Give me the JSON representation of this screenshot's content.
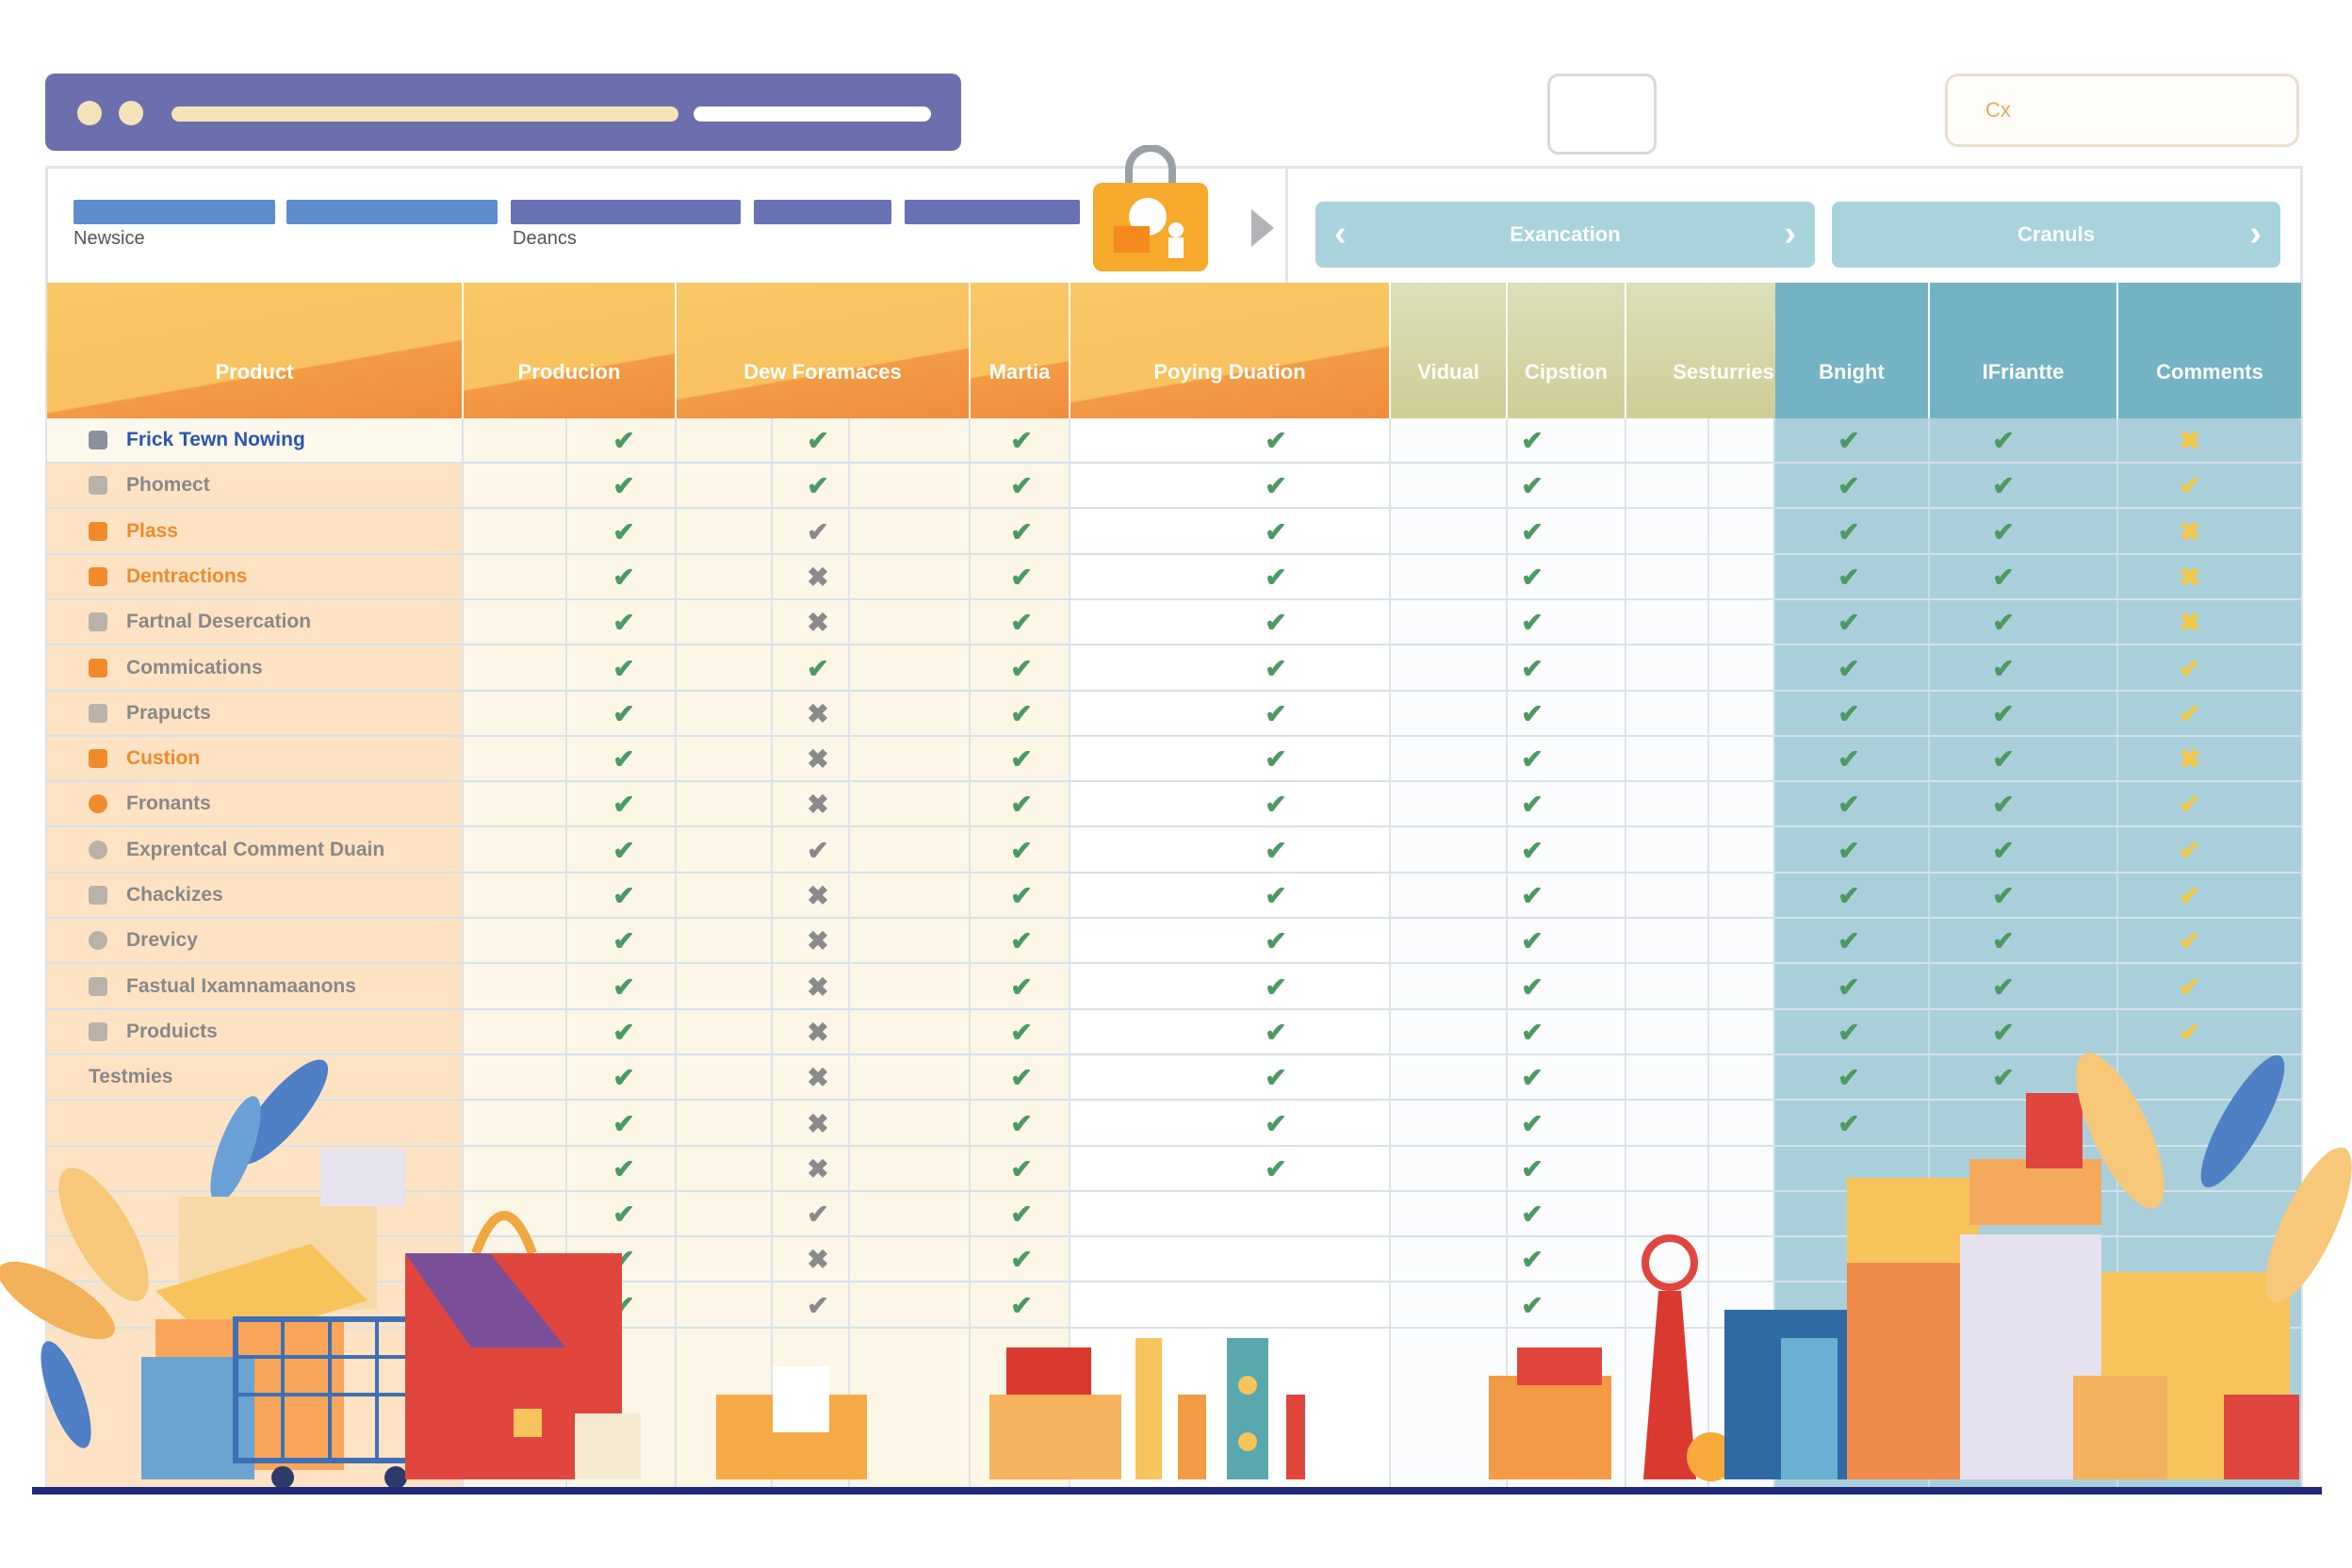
{
  "window": {
    "search_placeholder": "Cx"
  },
  "nav": {
    "label_left": "Newsice",
    "label_mid": "Deancs"
  },
  "tabs": [
    {
      "label": "Exancation"
    },
    {
      "label": "Cranuls"
    }
  ],
  "table": {
    "headers": [
      "Product",
      "Producion",
      "Dew Foramaces",
      "Martia",
      "Poying Duation",
      "Vidual",
      "Cipstion",
      "Sesturries",
      "Bnight",
      "IFriantte",
      "Comments"
    ],
    "rows": [
      {
        "name": "Frick Tewn Nowing",
        "color": "#2a56b0",
        "icon": "home-icon",
        "marks": [
          "check",
          "check",
          "check",
          "check",
          "check",
          "check",
          "check",
          "x-yellow"
        ]
      },
      {
        "name": "Phomect",
        "color": "#888888",
        "icon": "square-icon",
        "marks": [
          "check",
          "check",
          "check",
          "check",
          "check",
          "check",
          "check",
          "check-yellow"
        ]
      },
      {
        "name": "Plass",
        "color": "#f08a2a",
        "icon": "grid-icon",
        "marks": [
          "check",
          "check-gray",
          "check",
          "check",
          "check",
          "check",
          "check",
          "x-yellow"
        ]
      },
      {
        "name": "Dentractions",
        "color": "#f08a2a",
        "icon": "mail-icon",
        "marks": [
          "check",
          "cross",
          "check",
          "check",
          "check",
          "check",
          "check",
          "x-yellow"
        ]
      },
      {
        "name": "Fartnal Desercation",
        "color": "#888888",
        "icon": "card-icon",
        "marks": [
          "check",
          "cross",
          "check",
          "check",
          "check",
          "check",
          "check",
          "x-yellow"
        ]
      },
      {
        "name": "Commications",
        "color": "#888888",
        "icon": "folder-icon",
        "marks": [
          "check",
          "check",
          "check",
          "check",
          "check",
          "check",
          "check",
          "check-yellow"
        ]
      },
      {
        "name": "Prapucts",
        "color": "#888888",
        "icon": "chart-icon",
        "marks": [
          "check",
          "cross",
          "check",
          "check",
          "check",
          "check",
          "check",
          "check-yellow"
        ]
      },
      {
        "name": "Custion",
        "color": "#f08a2a",
        "icon": "envelope-icon",
        "marks": [
          "check",
          "cross",
          "check",
          "check",
          "check",
          "check",
          "check",
          "x-yellow"
        ]
      },
      {
        "name": "Fronants",
        "color": "#888888",
        "icon": "badge-icon",
        "marks": [
          "check",
          "cross",
          "check",
          "check",
          "check",
          "check",
          "check",
          "check-yellow"
        ]
      },
      {
        "name": "Exprentcal Comment Duain",
        "color": "#888888",
        "icon": "circle-check-icon",
        "marks": [
          "check",
          "check-gray",
          "check",
          "check",
          "check",
          "check",
          "check",
          "check-yellow"
        ]
      },
      {
        "name": "Chackizes",
        "color": "#888888",
        "icon": "bag-icon",
        "marks": [
          "check",
          "cross",
          "check",
          "check",
          "check",
          "check",
          "check",
          "check-yellow"
        ]
      },
      {
        "name": "Drevicy",
        "color": "#888888",
        "icon": "globe-icon",
        "marks": [
          "check",
          "cross",
          "check",
          "check",
          "check",
          "check",
          "check",
          "check-yellow"
        ]
      },
      {
        "name": "Fastual Ixamnamaanons",
        "color": "#888888",
        "icon": "building-icon",
        "marks": [
          "check",
          "cross",
          "check",
          "check",
          "check",
          "check",
          "check",
          "check-yellow"
        ]
      },
      {
        "name": "Produicts",
        "color": "#888888",
        "icon": "shield-icon",
        "marks": [
          "check",
          "cross",
          "check",
          "check",
          "check",
          "check",
          "check",
          "check-yellow"
        ]
      },
      {
        "name": "Testmies",
        "color": "#888888",
        "icon": "none",
        "marks": [
          "check",
          "cross",
          "check",
          "check",
          "check",
          "check",
          "check",
          ""
        ]
      },
      {
        "name": "",
        "color": "#888888",
        "icon": "none",
        "marks": [
          "check",
          "cross",
          "check",
          "check",
          "check",
          "check",
          "",
          ""
        ]
      },
      {
        "name": "",
        "color": "#888888",
        "icon": "none",
        "marks": [
          "check",
          "cross",
          "check",
          "check",
          "check",
          "",
          "",
          ""
        ]
      },
      {
        "name": "",
        "color": "#888888",
        "icon": "none",
        "marks": [
          "check",
          "check-gray",
          "check",
          "",
          "check",
          "",
          "",
          ""
        ]
      },
      {
        "name": "",
        "color": "#888888",
        "icon": "none",
        "marks": [
          "check",
          "cross",
          "check",
          "",
          "check",
          "",
          "",
          ""
        ]
      },
      {
        "name": "",
        "color": "#888888",
        "icon": "none",
        "marks": [
          "check",
          "check-gray",
          "check",
          "",
          "check",
          "",
          "",
          ""
        ]
      }
    ]
  },
  "colors": {
    "header_orange": "#f8c25f",
    "header_green": "#cfcd97",
    "header_teal": "#74b3c4",
    "check_green": "#4c9a63",
    "accent_yellow": "#f2c94c",
    "topbar": "#6c6fae"
  }
}
